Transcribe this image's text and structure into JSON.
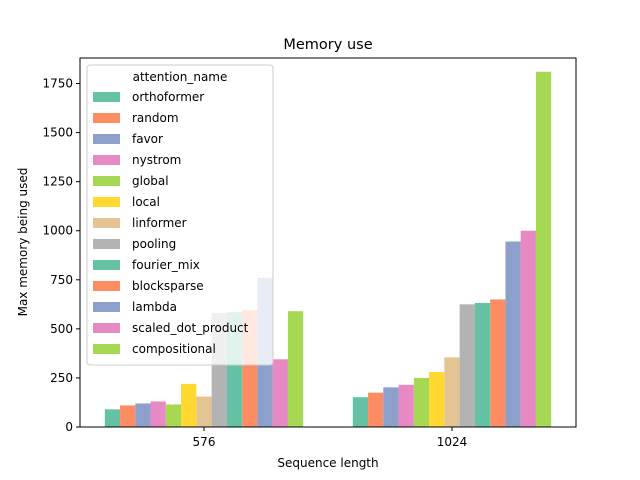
{
  "chart_data": {
    "type": "bar",
    "title": "Memory use",
    "xlabel": "Sequence length",
    "ylabel": "Max memory being used",
    "categories": [
      "576",
      "1024"
    ],
    "ylim": [
      0,
      1880
    ],
    "yticks": [
      0,
      250,
      500,
      750,
      1000,
      1250,
      1500,
      1750
    ],
    "grid": false,
    "legend": {
      "title": "attention_name",
      "placement": "top-left"
    },
    "series": [
      {
        "name": "orthoformer",
        "color": "#66c2a5",
        "values": [
          90,
          152
        ]
      },
      {
        "name": "random",
        "color": "#fc8d62",
        "values": [
          110,
          175
        ]
      },
      {
        "name": "favor",
        "color": "#8da0cb",
        "values": [
          120,
          202
        ]
      },
      {
        "name": "nystrom",
        "color": "#e78ac3",
        "values": [
          130,
          215
        ]
      },
      {
        "name": "global",
        "color": "#a6d854",
        "values": [
          115,
          250
        ]
      },
      {
        "name": "local",
        "color": "#ffd92f",
        "values": [
          220,
          280
        ]
      },
      {
        "name": "linformer",
        "color": "#e5c494",
        "values": [
          155,
          355
        ]
      },
      {
        "name": "pooling",
        "color": "#b3b3b3",
        "values": [
          580,
          625
        ]
      },
      {
        "name": "fourier_mix",
        "color": "#66c2a5",
        "values": [
          585,
          632
        ]
      },
      {
        "name": "blocksparse",
        "color": "#fc8d62",
        "values": [
          595,
          650
        ]
      },
      {
        "name": "lambda",
        "color": "#8da0cb",
        "values": [
          760,
          945
        ]
      },
      {
        "name": "scaled_dot_product",
        "color": "#e78ac3",
        "values": [
          345,
          1000
        ]
      },
      {
        "name": "compositional",
        "color": "#a6d854",
        "values": [
          590,
          1810
        ]
      }
    ]
  }
}
